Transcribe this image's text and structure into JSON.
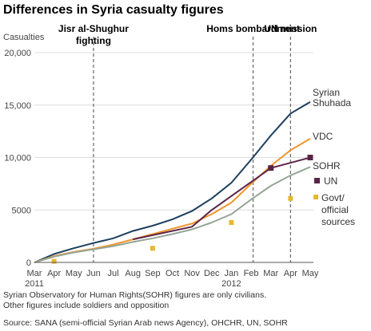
{
  "chart_data": {
    "type": "line",
    "title": "Differences in Syria casualty figures",
    "ylabel": "Casualties",
    "xlabel": "",
    "ylim": [
      0,
      20000
    ],
    "yticks": [
      0,
      5000,
      10000,
      15000,
      20000
    ],
    "ytick_labels": [
      "0",
      "5000",
      "10,000",
      "15,000",
      "20,000"
    ],
    "x_categories": [
      "Mar",
      "Apr",
      "May",
      "Jun",
      "Jul",
      "Aug",
      "Sep",
      "Oct",
      "Nov",
      "Dec",
      "Jan",
      "Feb",
      "Mar",
      "Apr",
      "May"
    ],
    "year_labels": [
      {
        "at": "Mar",
        "label": "2011"
      },
      {
        "at": "Jan",
        "label": "2012"
      }
    ],
    "grid": "horizontal",
    "annotations": [
      {
        "label_lines": [
          "Jisr al-Shughur",
          "fighting"
        ],
        "at": 3.0
      },
      {
        "label_lines": [
          "Homs bombardment"
        ],
        "at": 11.1
      },
      {
        "label_lines": [
          "UN mission"
        ],
        "at": 13.0
      }
    ],
    "series": [
      {
        "name": "Syrian Shuhada",
        "label_lines": [
          "Syrian",
          "Shuhada"
        ],
        "color": "#1d3f5e",
        "style": "line",
        "x": [
          0,
          1,
          2,
          3,
          4,
          5,
          6,
          7,
          8,
          9,
          10,
          11,
          12,
          13,
          14
        ],
        "y": [
          0,
          800,
          1350,
          1850,
          2300,
          3000,
          3500,
          4100,
          4900,
          6100,
          7600,
          9800,
          12100,
          14200,
          15300
        ]
      },
      {
        "name": "VDC",
        "label_lines": [
          "VDC"
        ],
        "color": "#f0952c",
        "style": "line",
        "x": [
          0,
          1,
          2,
          3,
          4,
          5,
          6,
          7,
          8,
          9,
          10,
          11,
          12,
          13,
          14
        ],
        "y": [
          0,
          600,
          1000,
          1300,
          1700,
          2200,
          2700,
          3200,
          3700,
          4600,
          5700,
          7500,
          9200,
          10700,
          11800
        ]
      },
      {
        "name": "SOHR",
        "label_lines": [
          "SOHR"
        ],
        "color": "#95a595",
        "style": "line",
        "x": [
          0,
          1,
          2,
          3,
          4,
          5,
          6,
          7,
          8,
          9,
          10,
          11,
          12,
          13,
          14
        ],
        "y": [
          0,
          550,
          950,
          1250,
          1550,
          1950,
          2300,
          2700,
          3150,
          3800,
          4600,
          6000,
          7300,
          8300,
          9100
        ]
      },
      {
        "name": "UN",
        "label_lines": [
          "UN"
        ],
        "color": "#5a2447",
        "style": "line-markers",
        "x": [
          5,
          8,
          9,
          12,
          14
        ],
        "y": [
          2200,
          3400,
          5000,
          9000,
          10000
        ],
        "marker_indices": [
          3,
          4
        ]
      },
      {
        "name": "Govt/ official sources",
        "label_lines": [
          "Govt/",
          "official",
          "sources"
        ],
        "color": "#e6b82e",
        "style": "markers",
        "x": [
          1,
          6,
          10,
          13
        ],
        "y": [
          100,
          1350,
          3800,
          6100
        ]
      }
    ]
  },
  "footnotes": [
    "Syrian Observatory for Human Rights(SOHR) figures are only civilians.",
    "Other figures include soldiers and opposition"
  ],
  "source": "Source: SANA (semi-official Syrian Arab news Agency), OHCHR, UN, SOHR"
}
